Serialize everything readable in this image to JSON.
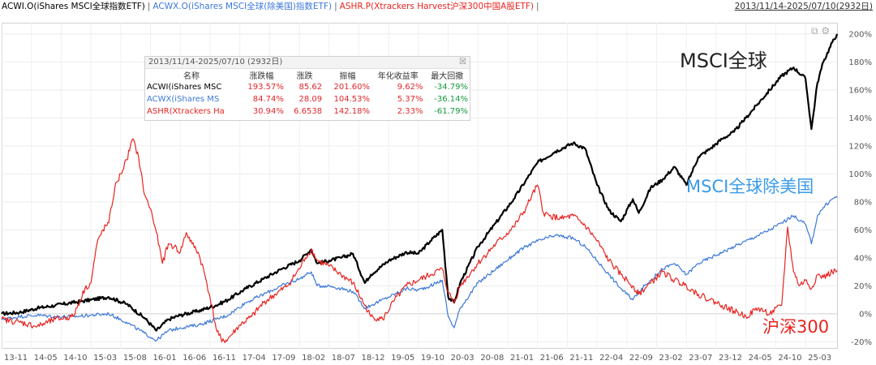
{
  "header": {
    "legend": [
      {
        "label": "ACWI.O(iShares MSCI全球指数ETF)",
        "color": "#000000"
      },
      {
        "label": "ACWX.O(iShares MSCI全球(除美国)指数ETF)",
        "color": "#3c78d8"
      },
      {
        "label": "ASHR.P(Xtrackers Harvest沪深300中国A股ETF)",
        "color": "#e8231f"
      }
    ],
    "separator": "|",
    "date_range": "2013/11/14-2025/07/10(2932日)"
  },
  "stats_panel": {
    "title": "2013/11/14-2025/07/10 (2932日)",
    "close_icon": "close-icon",
    "columns": [
      "名称",
      "涨跌幅",
      "涨跌",
      "振幅",
      "年化收益率",
      "最大回撤"
    ],
    "rows": [
      {
        "name": "ACWI(iShares MSC",
        "color": "#000000",
        "change_pct": "193.57%",
        "change": "85.62",
        "amplitude": "201.60%",
        "annual": "9.62%",
        "max_dd": "-34.79%"
      },
      {
        "name": "ACWX(iShares MS",
        "color": "#3c78d8",
        "change_pct": "84.74%",
        "change": "28.09",
        "amplitude": "104.53%",
        "annual": "5.37%",
        "max_dd": "-36.14%"
      },
      {
        "name": "ASHR(Xtrackers Ha",
        "color": "#e8231f",
        "change_pct": "30.94%",
        "change": "6.6538",
        "amplitude": "142.18%",
        "annual": "2.33%",
        "max_dd": "-61.79%"
      }
    ]
  },
  "annotations": [
    {
      "text": "MSCI全球",
      "color": "#222222"
    },
    {
      "text": "MSCI全球除美国",
      "color": "#3a9ae8"
    },
    {
      "text": "沪深300",
      "color": "#e8231f"
    }
  ],
  "chart_data": {
    "type": "line",
    "x_ticks": [
      "13-11",
      "14-05",
      "14-10",
      "15-03",
      "15-08",
      "16-01",
      "16-06",
      "16-11",
      "17-04",
      "17-09",
      "18-02",
      "18-07",
      "18-12",
      "19-05",
      "19-10",
      "20-03",
      "20-08",
      "21-01",
      "21-06",
      "21-11",
      "22-04",
      "22-09",
      "23-02",
      "23-07",
      "23-12",
      "24-05",
      "24-10",
      "25-03"
    ],
    "y_ticks": [
      "-20%",
      "0%",
      "20%",
      "40%",
      "60%",
      "80%",
      "100%",
      "120%",
      "140%",
      "160%",
      "180%",
      "200%"
    ],
    "ylim": [
      -25,
      208
    ],
    "x_unit": "months since 2013-11",
    "x_range": [
      0,
      140.3
    ],
    "grid": true,
    "series": [
      {
        "name": "ACWI.O",
        "color": "#000000",
        "points": [
          [
            0,
            0
          ],
          [
            3,
            1
          ],
          [
            6,
            4
          ],
          [
            9,
            6
          ],
          [
            12,
            8
          ],
          [
            15,
            10
          ],
          [
            18,
            12
          ],
          [
            21,
            7
          ],
          [
            24,
            -3
          ],
          [
            26,
            -12
          ],
          [
            28,
            -4
          ],
          [
            30,
            -1
          ],
          [
            33,
            2
          ],
          [
            36,
            6
          ],
          [
            38,
            10
          ],
          [
            41,
            18
          ],
          [
            44,
            25
          ],
          [
            47,
            32
          ],
          [
            50,
            38
          ],
          [
            52,
            46
          ],
          [
            53,
            36
          ],
          [
            55,
            38
          ],
          [
            57,
            40
          ],
          [
            59,
            43
          ],
          [
            61,
            22
          ],
          [
            62,
            28
          ],
          [
            65,
            38
          ],
          [
            68,
            44
          ],
          [
            70,
            43
          ],
          [
            72,
            52
          ],
          [
            74,
            60
          ],
          [
            75,
            12
          ],
          [
            76,
            8
          ],
          [
            77,
            22
          ],
          [
            80,
            48
          ],
          [
            83,
            65
          ],
          [
            86,
            82
          ],
          [
            88,
            95
          ],
          [
            90,
            108
          ],
          [
            93,
            116
          ],
          [
            96,
            122
          ],
          [
            98,
            118
          ],
          [
            100,
            92
          ],
          [
            102,
            74
          ],
          [
            104,
            66
          ],
          [
            106,
            82
          ],
          [
            107,
            72
          ],
          [
            109,
            90
          ],
          [
            111,
            96
          ],
          [
            113,
            105
          ],
          [
            115,
            92
          ],
          [
            117,
            112
          ],
          [
            119,
            118
          ],
          [
            121,
            125
          ],
          [
            123,
            130
          ],
          [
            125,
            140
          ],
          [
            127,
            150
          ],
          [
            129,
            160
          ],
          [
            131,
            170
          ],
          [
            133,
            176
          ],
          [
            135,
            168
          ],
          [
            136,
            132
          ],
          [
            137,
            165
          ],
          [
            138,
            180
          ],
          [
            139.5,
            194
          ],
          [
            140.3,
            200
          ]
        ]
      },
      {
        "name": "ACWX.O",
        "color": "#3c78d8",
        "points": [
          [
            0,
            -4
          ],
          [
            3,
            -2
          ],
          [
            6,
            -1
          ],
          [
            9,
            -2
          ],
          [
            12,
            -2
          ],
          [
            15,
            -1
          ],
          [
            18,
            0
          ],
          [
            21,
            -6
          ],
          [
            24,
            -14
          ],
          [
            26,
            -19
          ],
          [
            28,
            -12
          ],
          [
            30,
            -10
          ],
          [
            33,
            -8
          ],
          [
            36,
            -4
          ],
          [
            38,
            -1
          ],
          [
            41,
            8
          ],
          [
            44,
            14
          ],
          [
            47,
            20
          ],
          [
            50,
            25
          ],
          [
            52,
            30
          ],
          [
            53,
            20
          ],
          [
            55,
            20
          ],
          [
            57,
            18
          ],
          [
            59,
            16
          ],
          [
            61,
            4
          ],
          [
            62,
            6
          ],
          [
            65,
            12
          ],
          [
            68,
            18
          ],
          [
            70,
            17
          ],
          [
            72,
            20
          ],
          [
            74,
            24
          ],
          [
            75,
            -2
          ],
          [
            76,
            -10
          ],
          [
            77,
            4
          ],
          [
            80,
            22
          ],
          [
            83,
            32
          ],
          [
            86,
            42
          ],
          [
            88,
            48
          ],
          [
            90,
            52
          ],
          [
            93,
            56
          ],
          [
            96,
            54
          ],
          [
            98,
            48
          ],
          [
            100,
            38
          ],
          [
            102,
            28
          ],
          [
            104,
            18
          ],
          [
            106,
            10
          ],
          [
            107,
            16
          ],
          [
            109,
            24
          ],
          [
            111,
            32
          ],
          [
            113,
            36
          ],
          [
            115,
            28
          ],
          [
            117,
            36
          ],
          [
            119,
            40
          ],
          [
            121,
            44
          ],
          [
            123,
            48
          ],
          [
            125,
            52
          ],
          [
            127,
            56
          ],
          [
            129,
            60
          ],
          [
            131,
            65
          ],
          [
            133,
            70
          ],
          [
            135,
            64
          ],
          [
            136,
            50
          ],
          [
            137,
            70
          ],
          [
            138,
            76
          ],
          [
            139.5,
            82
          ],
          [
            140.3,
            84
          ]
        ]
      },
      {
        "name": "ASHR.P",
        "color": "#e8231f",
        "points": [
          [
            0,
            -4
          ],
          [
            3,
            -6
          ],
          [
            6,
            -9
          ],
          [
            9,
            -4
          ],
          [
            12,
            -2
          ],
          [
            14,
            18
          ],
          [
            15,
            22
          ],
          [
            16,
            50
          ],
          [
            17,
            60
          ],
          [
            18,
            65
          ],
          [
            19,
            90
          ],
          [
            20,
            100
          ],
          [
            21,
            110
          ],
          [
            22,
            125
          ],
          [
            23,
            112
          ],
          [
            24,
            85
          ],
          [
            25,
            75
          ],
          [
            26,
            58
          ],
          [
            27,
            36
          ],
          [
            28,
            50
          ],
          [
            29,
            48
          ],
          [
            30,
            44
          ],
          [
            31,
            58
          ],
          [
            32,
            50
          ],
          [
            33,
            44
          ],
          [
            34,
            30
          ],
          [
            35,
            12
          ],
          [
            36,
            -10
          ],
          [
            37,
            -20
          ],
          [
            38,
            -18
          ],
          [
            40,
            -8
          ],
          [
            42,
            -2
          ],
          [
            44,
            8
          ],
          [
            46,
            14
          ],
          [
            48,
            20
          ],
          [
            50,
            32
          ],
          [
            51,
            40
          ],
          [
            52,
            46
          ],
          [
            53,
            38
          ],
          [
            55,
            34
          ],
          [
            57,
            28
          ],
          [
            59,
            22
          ],
          [
            61,
            6
          ],
          [
            62,
            -2
          ],
          [
            64,
            -4
          ],
          [
            66,
            10
          ],
          [
            68,
            20
          ],
          [
            70,
            24
          ],
          [
            72,
            28
          ],
          [
            74,
            32
          ],
          [
            75,
            15
          ],
          [
            76,
            8
          ],
          [
            77,
            20
          ],
          [
            80,
            36
          ],
          [
            83,
            50
          ],
          [
            86,
            62
          ],
          [
            88,
            75
          ],
          [
            89,
            84
          ],
          [
            90,
            92
          ],
          [
            91,
            72
          ],
          [
            92,
            70
          ],
          [
            94,
            68
          ],
          [
            96,
            70
          ],
          [
            98,
            63
          ],
          [
            100,
            52
          ],
          [
            102,
            38
          ],
          [
            104,
            28
          ],
          [
            106,
            20
          ],
          [
            107,
            14
          ],
          [
            109,
            22
          ],
          [
            111,
            30
          ],
          [
            113,
            24
          ],
          [
            115,
            20
          ],
          [
            117,
            14
          ],
          [
            119,
            10
          ],
          [
            121,
            6
          ],
          [
            123,
            2
          ],
          [
            125,
            -2
          ],
          [
            127,
            4
          ],
          [
            129,
            0
          ],
          [
            131,
            6
          ],
          [
            132,
            62
          ],
          [
            133,
            30
          ],
          [
            134,
            20
          ],
          [
            135,
            24
          ],
          [
            136,
            18
          ],
          [
            137,
            28
          ],
          [
            138,
            26
          ],
          [
            139.5,
            30
          ],
          [
            140.3,
            31
          ]
        ]
      }
    ]
  }
}
